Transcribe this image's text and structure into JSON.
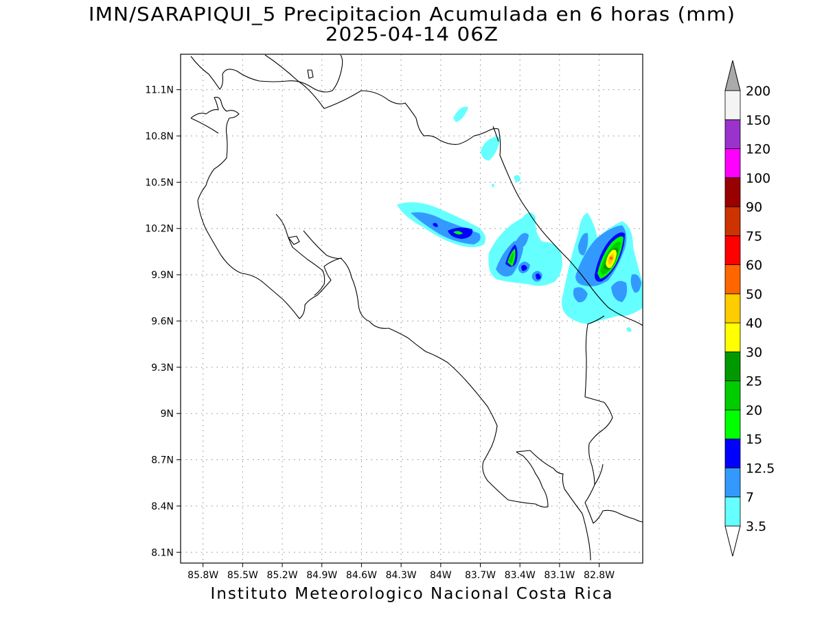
{
  "title": {
    "line1": "IMN/SARAPIQUI_5 Precipitacion Acumulada en 6 horas (mm)",
    "line2": "2025-04-14 06Z"
  },
  "footer": {
    "credit": "Instituto Meteorologico Nacional Costa Rica"
  },
  "map": {
    "lon_range": [
      -85.97,
      -82.47
    ],
    "lat_range": [
      8.03,
      11.33
    ],
    "lat_ticks": [
      {
        "value": 11.1,
        "label": "11.1N"
      },
      {
        "value": 10.8,
        "label": "10.8N"
      },
      {
        "value": 10.5,
        "label": "10.5N"
      },
      {
        "value": 10.2,
        "label": "10.2N"
      },
      {
        "value": 9.9,
        "label": "9.9N"
      },
      {
        "value": 9.6,
        "label": "9.6N"
      },
      {
        "value": 9.3,
        "label": "9.3N"
      },
      {
        "value": 9.0,
        "label": "9N"
      },
      {
        "value": 8.7,
        "label": "8.7N"
      },
      {
        "value": 8.4,
        "label": "8.4N"
      },
      {
        "value": 8.1,
        "label": "8.1N"
      }
    ],
    "lon_ticks": [
      {
        "value": -85.8,
        "label": "85.8W"
      },
      {
        "value": -85.5,
        "label": "85.5W"
      },
      {
        "value": -85.2,
        "label": "85.2W"
      },
      {
        "value": -84.9,
        "label": "84.9W"
      },
      {
        "value": -84.6,
        "label": "84.6W"
      },
      {
        "value": -84.3,
        "label": "84.3W"
      },
      {
        "value": -84.0,
        "label": "84W"
      },
      {
        "value": -83.7,
        "label": "83.7W"
      },
      {
        "value": -83.4,
        "label": "83.4W"
      },
      {
        "value": -83.1,
        "label": "83.1W"
      },
      {
        "value": -82.8,
        "label": "82.8W"
      }
    ],
    "grid": true
  },
  "colorbar": {
    "units": "mm",
    "levels": [
      {
        "label": "3.5",
        "color": "#66ffff"
      },
      {
        "label": "7",
        "color": "#3399ff"
      },
      {
        "label": "12.5",
        "color": "#0000ff"
      },
      {
        "label": "15",
        "color": "#00ff00"
      },
      {
        "label": "20",
        "color": "#00cc00"
      },
      {
        "label": "25",
        "color": "#009900"
      },
      {
        "label": "30",
        "color": "#ffff00"
      },
      {
        "label": "40",
        "color": "#ffcc00"
      },
      {
        "label": "50",
        "color": "#ff6600"
      },
      {
        "label": "60",
        "color": "#ff0000"
      },
      {
        "label": "75",
        "color": "#cc3300"
      },
      {
        "label": "90",
        "color": "#990000"
      },
      {
        "label": "100",
        "color": "#ff00ff"
      },
      {
        "label": "120",
        "color": "#9933cc"
      },
      {
        "label": "150",
        "color": "#f4f4f4"
      },
      {
        "label": "200",
        "color": "#aaaaaa"
      }
    ],
    "under_color": "#ffffff",
    "over_color": "#aaaaaa"
  },
  "rain_cells": [
    {
      "lon": -83.9,
      "lat": 10.21,
      "max_mm": 13
    },
    {
      "lon": -83.5,
      "lat": 9.97,
      "max_mm": 22
    },
    {
      "lon": -83.4,
      "lat": 9.91,
      "max_mm": 14
    },
    {
      "lon": -83.3,
      "lat": 9.86,
      "max_mm": 12
    },
    {
      "lon": -82.77,
      "lat": 9.97,
      "max_mm": 47
    },
    {
      "lon": -83.7,
      "lat": 10.9,
      "max_mm": 4
    },
    {
      "lon": -83.62,
      "lat": 10.72,
      "max_mm": 5
    }
  ]
}
